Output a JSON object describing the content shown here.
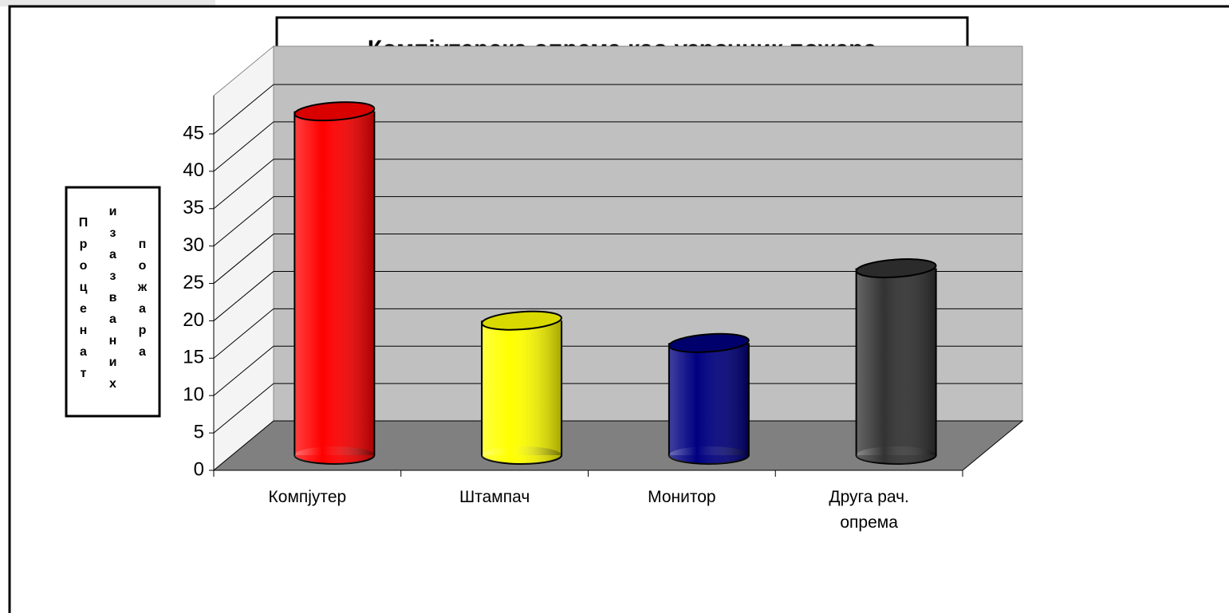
{
  "chart_data": {
    "type": "bar3d",
    "title": "Компјутерска опрема као узрочник пожара",
    "y_label": "Проценат изазваних пожара",
    "categories": [
      "Компјутер",
      "Штампач",
      "Монитор",
      "Друга рач. опрема"
    ],
    "values": [
      46,
      18,
      15,
      25
    ],
    "colors": [
      "#ff0000",
      "#ffff00",
      "#000080",
      "#333333"
    ],
    "ylim": [
      0,
      45
    ],
    "yticks": [
      0,
      5,
      10,
      15,
      20,
      25,
      30,
      35,
      40,
      45
    ],
    "grid": true
  }
}
